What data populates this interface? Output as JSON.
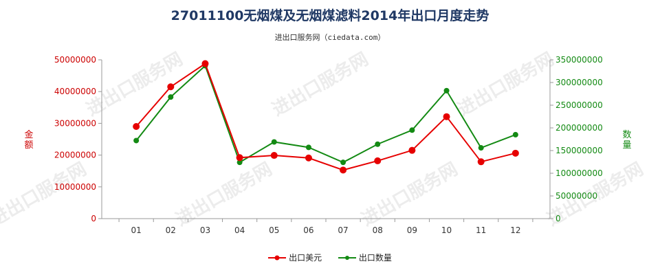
{
  "header": {
    "title": "27011100无烟煤及无烟煤滤料2014年出口月度走势",
    "subtitle": "进出口服务网（ciedata.com）"
  },
  "watermark": "进出口服务网",
  "colors": {
    "series1": "#e60000",
    "series2": "#138a13",
    "axis_left": "#cc0000",
    "axis_right": "#138a13"
  },
  "chart_data": {
    "type": "line",
    "title": "27011100无烟煤及无烟煤滤料2014年出口月度走势",
    "categories": [
      "01",
      "02",
      "03",
      "04",
      "05",
      "06",
      "07",
      "08",
      "09",
      "10",
      "11",
      "12"
    ],
    "y_left": {
      "label": "金额",
      "ylim": [
        0,
        50000000
      ],
      "ticks": [
        "0",
        "10000000",
        "20000000",
        "30000000",
        "40000000",
        "50000000"
      ]
    },
    "y_right": {
      "label": "数量",
      "ylim": [
        0,
        350000000
      ],
      "ticks": [
        "0",
        "50000000",
        "100000000",
        "150000000",
        "200000000",
        "250000000",
        "300000000",
        "350000000"
      ]
    },
    "series": [
      {
        "name": "出口美元",
        "axis": "left",
        "values": [
          29000000,
          41500000,
          48800000,
          19200000,
          19900000,
          19100000,
          15300000,
          18200000,
          21500000,
          32100000,
          17900000,
          20600000
        ]
      },
      {
        "name": "出口数量",
        "axis": "right",
        "values": [
          172000000,
          268000000,
          337000000,
          124000000,
          169000000,
          157000000,
          124000000,
          164000000,
          195000000,
          282000000,
          156000000,
          185000000
        ]
      }
    ],
    "grid": false,
    "legend": "bottom-center"
  }
}
